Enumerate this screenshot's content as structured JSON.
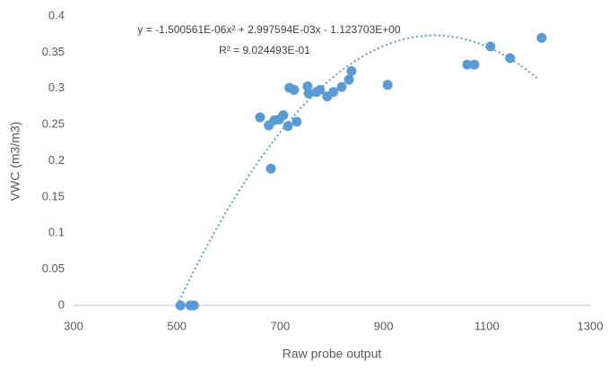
{
  "chart_data": {
    "type": "scatter",
    "x_label": "Raw probe output",
    "y_label": "VWC (m3/m3)",
    "series": [
      {
        "name": "VWC",
        "color": "#5b9bd5",
        "x": [
          507,
          526,
          533,
          661,
          682,
          678,
          689,
          698,
          706,
          715,
          718,
          727,
          732,
          753,
          755,
          770,
          777,
          791,
          803,
          819,
          833,
          838,
          908,
          1062,
          1076,
          1107,
          1145,
          1206
        ],
        "values": [
          0,
          0,
          0,
          0.26,
          0.189,
          0.249,
          0.256,
          0.257,
          0.263,
          0.248,
          0.301,
          0.298,
          0.254,
          0.303,
          0.293,
          0.295,
          0.298,
          0.289,
          0.295,
          0.302,
          0.312,
          0.324,
          0.305,
          0.333,
          0.333,
          0.358,
          0.342,
          0.37
        ]
      }
    ],
    "trendline": {
      "equation": "y = -1.500561E-06x² + 2.997594E-03x - 1.123703E+00",
      "r_squared": "R² = 9.024493E-01",
      "coefficients": [
        -1.500561e-06,
        0.002997594,
        -1.123703
      ],
      "x_range": [
        500,
        1200
      ],
      "color": "#5b9bd5"
    },
    "xlim": [
      300,
      1300
    ],
    "xticks": [
      300,
      500,
      700,
      900,
      1100,
      1300
    ],
    "ylim": [
      0,
      0.4
    ],
    "yticks": [
      0,
      0.05,
      0.1,
      0.15,
      0.2,
      0.25,
      0.3,
      0.35,
      0.4
    ],
    "grid": false
  }
}
